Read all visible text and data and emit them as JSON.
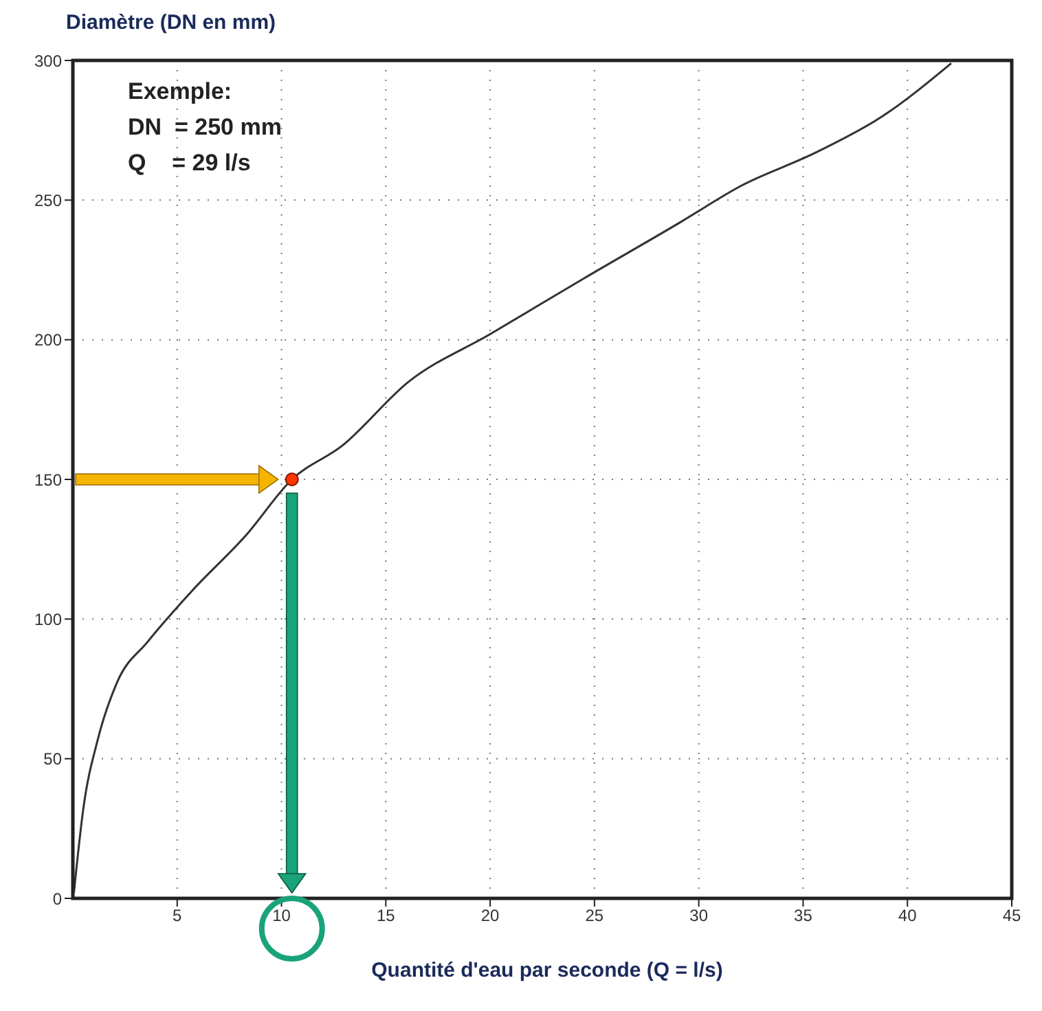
{
  "chart_data": {
    "type": "line",
    "title": "Diamètre (DN en mm)",
    "xlabel": "Quantité d'eau par seconde (Q = l/s)",
    "annotations": [
      "Exemple:",
      "DN  = 250 mm",
      "Q    = 29 l/s"
    ],
    "xlim": [
      0,
      45
    ],
    "xticks": [
      5,
      10,
      15,
      20,
      25,
      30,
      35,
      40,
      45
    ],
    "ylim": [
      0,
      300
    ],
    "yticks": [
      0,
      50,
      100,
      150,
      200,
      250,
      300
    ],
    "grid": true,
    "series": [
      {
        "color": "#333333",
        "marker": "none",
        "x": [
          0.05,
          0.5,
          1.2,
          2.1,
          3.6,
          5.7,
          8.3,
          10.5,
          12.9,
          16.1,
          20,
          24.5,
          29.1,
          32,
          35.6,
          38.8,
          42.1
        ],
        "values": [
          2,
          32,
          57,
          77,
          92,
          110,
          130,
          150,
          162,
          185,
          202,
          222,
          242,
          255,
          267,
          280,
          299
        ]
      },
      {
        "type": "scatter",
        "color": "#ff3300",
        "marker": "circle",
        "x": [
          10.5
        ],
        "values": [
          150
        ]
      }
    ]
  }
}
